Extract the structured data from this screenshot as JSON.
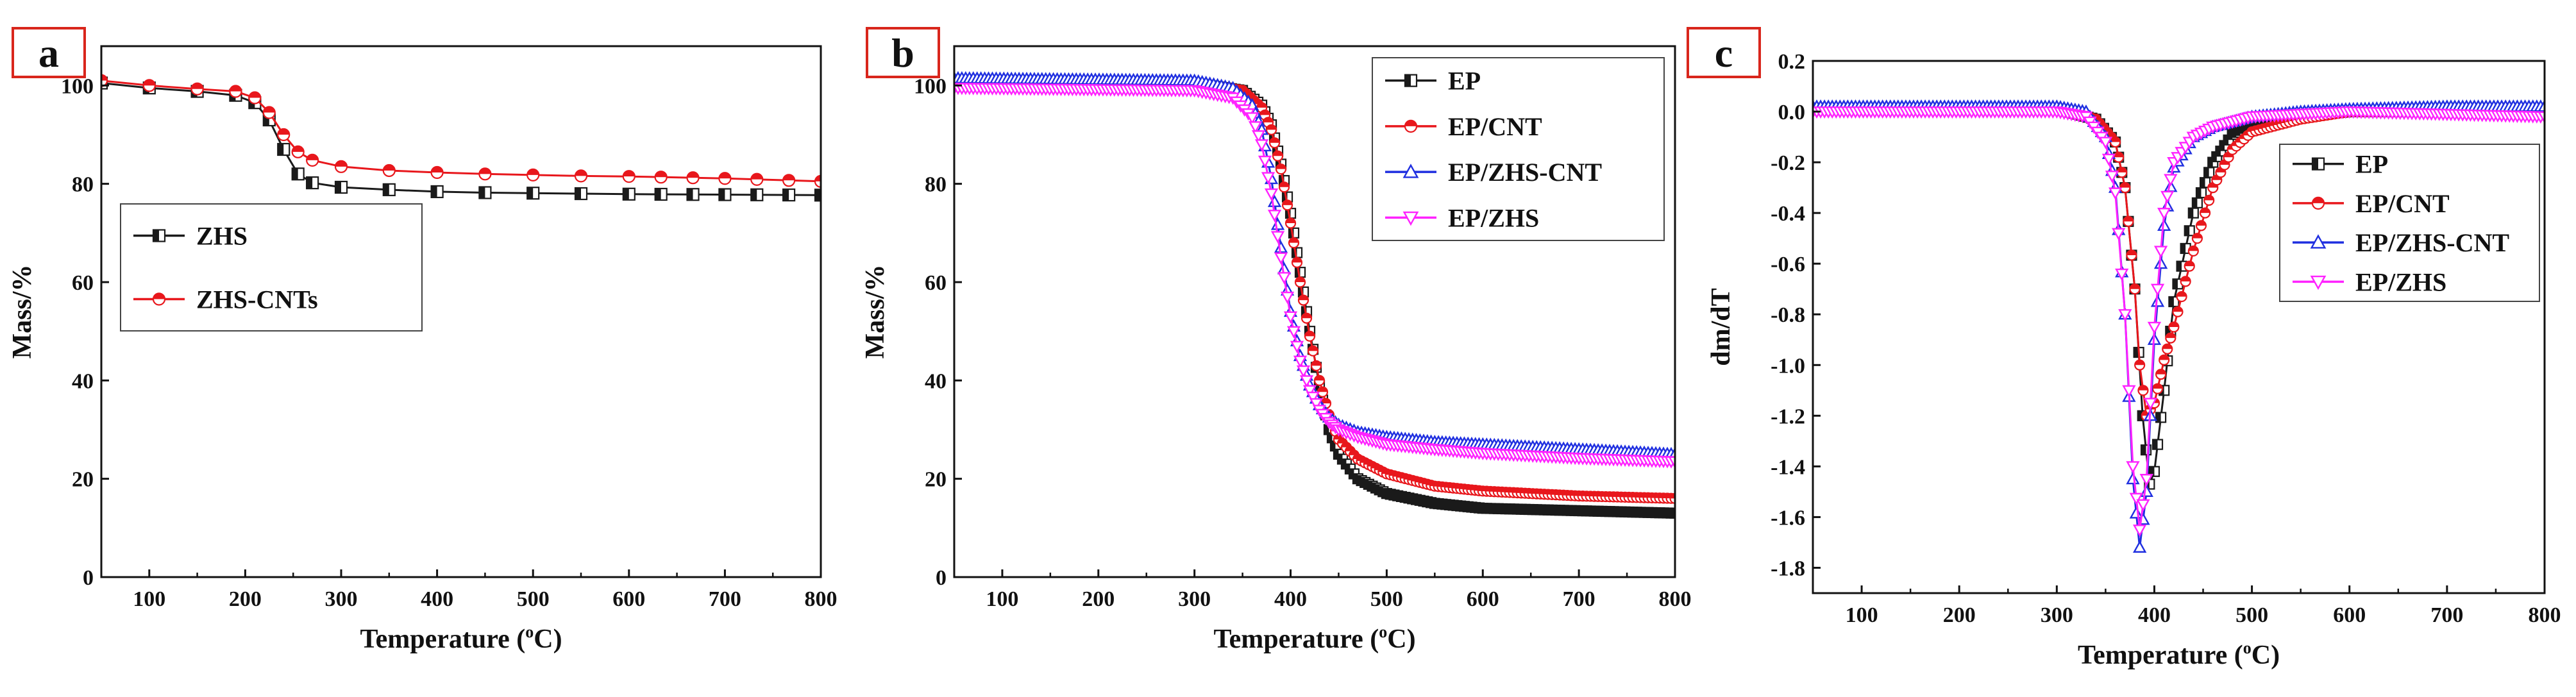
{
  "colors": {
    "black": "#1a1a1a",
    "red": "#e8171c",
    "blue": "#1f2fe0",
    "magenta": "#ff22ff",
    "panel_border": "#d9261c"
  },
  "chart_data": [
    {
      "panel": "a",
      "type": "line",
      "xlabel": "Temperature (°C)",
      "xlabel_main": "Temperature (",
      "xlabel_sup": "o",
      "xlabel_end": "C)",
      "ylabel": "Mass/%",
      "xlim": [
        50,
        800
      ],
      "ylim": [
        0,
        108
      ],
      "xticks": [
        "100",
        "200",
        "300",
        "400",
        "500",
        "600",
        "700",
        "800"
      ],
      "yticks": [
        "0",
        "20",
        "40",
        "60",
        "80",
        "100"
      ],
      "legend_position": "middle-left",
      "series": [
        {
          "name": "ZHS",
          "color": "black",
          "marker": "square",
          "x": [
            50,
            100,
            150,
            190,
            210,
            225,
            240,
            255,
            270,
            300,
            350,
            400,
            450,
            500,
            550,
            600,
            700,
            800
          ],
          "y": [
            100.5,
            99.5,
            98.8,
            98,
            96.5,
            93,
            87,
            82,
            80.2,
            79.3,
            78.8,
            78.4,
            78.2,
            78.1,
            78,
            77.9,
            77.8,
            77.7
          ]
        },
        {
          "name": "ZHS-CNTs",
          "color": "red",
          "marker": "circle-half",
          "x": [
            50,
            100,
            150,
            190,
            210,
            225,
            240,
            255,
            270,
            300,
            350,
            400,
            450,
            500,
            550,
            600,
            700,
            800
          ],
          "y": [
            101,
            100,
            99.3,
            98.8,
            97.5,
            94.5,
            90,
            86.5,
            84.8,
            83.5,
            82.7,
            82.3,
            82,
            81.8,
            81.6,
            81.5,
            81.1,
            80.5
          ]
        }
      ]
    },
    {
      "panel": "b",
      "type": "line",
      "xlabel": "Temperature (°C)",
      "xlabel_main": "Temperature (",
      "xlabel_sup": "o",
      "xlabel_end": "C)",
      "ylabel": "Mass/%",
      "xlim": [
        50,
        800
      ],
      "ylim": [
        0,
        108
      ],
      "xticks": [
        "100",
        "200",
        "300",
        "400",
        "500",
        "600",
        "700",
        "800"
      ],
      "yticks": [
        "0",
        "20",
        "40",
        "60",
        "80",
        "100"
      ],
      "legend_position": "top-right",
      "series": [
        {
          "name": "EP",
          "color": "black",
          "marker": "square",
          "x": [
            50,
            300,
            350,
            370,
            380,
            390,
            400,
            410,
            420,
            430,
            440,
            450,
            470,
            500,
            550,
            600,
            700,
            800
          ],
          "y": [
            101,
            100.5,
            99,
            96,
            92,
            84,
            74,
            62,
            50,
            39,
            30,
            25,
            20,
            17,
            15,
            14,
            13.5,
            13
          ]
        },
        {
          "name": "EP/CNT",
          "color": "red",
          "marker": "circle-half",
          "x": [
            50,
            300,
            350,
            370,
            380,
            390,
            400,
            410,
            420,
            430,
            440,
            450,
            470,
            500,
            550,
            600,
            700,
            800
          ],
          "y": [
            101,
            100.5,
            99,
            95.5,
            91,
            83,
            72,
            60,
            49,
            40,
            33,
            28,
            24,
            21,
            18.5,
            17.5,
            16.5,
            16
          ]
        },
        {
          "name": "EP/ZHS-CNT",
          "color": "blue",
          "marker": "triangle",
          "x": [
            50,
            300,
            340,
            360,
            370,
            380,
            390,
            400,
            410,
            420,
            430,
            440,
            450,
            470,
            500,
            550,
            600,
            700,
            800
          ],
          "y": [
            101.5,
            101,
            99.5,
            96,
            91,
            81,
            67,
            54,
            45,
            39,
            35,
            32.5,
            31,
            29.5,
            28.5,
            27.5,
            27,
            26,
            25
          ]
        },
        {
          "name": "EP/ZHS",
          "color": "magenta",
          "marker": "triangle-down",
          "x": [
            50,
            300,
            340,
            360,
            370,
            380,
            390,
            400,
            410,
            420,
            430,
            440,
            450,
            470,
            500,
            550,
            600,
            700,
            800
          ],
          "y": [
            99.5,
            99,
            97.5,
            93.5,
            88,
            78,
            65,
            53,
            44,
            38,
            34,
            31.5,
            30,
            28.5,
            27,
            26,
            25.2,
            24.2,
            23.5
          ]
        }
      ]
    },
    {
      "panel": "c",
      "type": "line",
      "xlabel": "Temperature (°C)",
      "xlabel_main": "Temperature (",
      "xlabel_sup": "o",
      "xlabel_end": "C)",
      "ylabel": "dm/dT",
      "xlim": [
        50,
        800
      ],
      "ylim": [
        -1.9,
        0.2
      ],
      "xticks": [
        "100",
        "200",
        "300",
        "400",
        "500",
        "600",
        "700",
        "800"
      ],
      "yticks": [
        "0.2",
        "0.0",
        "-0.2",
        "-0.4",
        "-0.6",
        "-0.8",
        "-1.0",
        "-1.2",
        "-1.4",
        "-1.6",
        "-1.8"
      ],
      "legend_position": "middle-right",
      "series": [
        {
          "name": "EP",
          "color": "black",
          "marker": "square",
          "x": [
            50,
            300,
            340,
            360,
            370,
            380,
            388,
            395,
            400,
            410,
            420,
            440,
            460,
            480,
            500,
            550,
            600,
            700,
            800
          ],
          "y": [
            0.01,
            0.01,
            -0.03,
            -0.12,
            -0.3,
            -0.7,
            -1.2,
            -1.47,
            -1.42,
            -1.1,
            -0.75,
            -0.4,
            -0.2,
            -0.09,
            -0.05,
            -0.02,
            0.0,
            0.0,
            0.0
          ]
        },
        {
          "name": "EP/CNT",
          "color": "red",
          "marker": "circle-half",
          "x": [
            50,
            300,
            340,
            360,
            370,
            380,
            385,
            392,
            400,
            410,
            420,
            440,
            460,
            480,
            500,
            550,
            600,
            700,
            800
          ],
          "y": [
            0.01,
            0.01,
            -0.03,
            -0.12,
            -0.3,
            -0.7,
            -1.0,
            -1.2,
            -1.15,
            -0.98,
            -0.85,
            -0.55,
            -0.3,
            -0.15,
            -0.08,
            -0.03,
            0.0,
            0.0,
            0.0
          ]
        },
        {
          "name": "EP/ZHS-CNT",
          "color": "blue",
          "marker": "triangle",
          "x": [
            50,
            300,
            330,
            350,
            360,
            370,
            378,
            385,
            392,
            400,
            410,
            420,
            440,
            460,
            480,
            500,
            550,
            600,
            700,
            800
          ],
          "y": [
            0.02,
            0.02,
            0.0,
            -0.1,
            -0.3,
            -0.8,
            -1.45,
            -1.72,
            -1.5,
            -0.9,
            -0.45,
            -0.22,
            -0.1,
            -0.06,
            -0.04,
            -0.02,
            0.0,
            0.01,
            0.02,
            0.02
          ]
        },
        {
          "name": "EP/ZHS",
          "color": "magenta",
          "marker": "triangle-down",
          "x": [
            50,
            300,
            330,
            350,
            360,
            370,
            378,
            385,
            392,
            400,
            410,
            420,
            440,
            460,
            480,
            500,
            550,
            600,
            700,
            800
          ],
          "y": [
            0.0,
            0.0,
            -0.02,
            -0.12,
            -0.32,
            -0.8,
            -1.4,
            -1.65,
            -1.45,
            -0.85,
            -0.4,
            -0.2,
            -0.1,
            -0.06,
            -0.04,
            -0.02,
            -0.01,
            0.0,
            -0.01,
            -0.02
          ]
        }
      ]
    }
  ]
}
